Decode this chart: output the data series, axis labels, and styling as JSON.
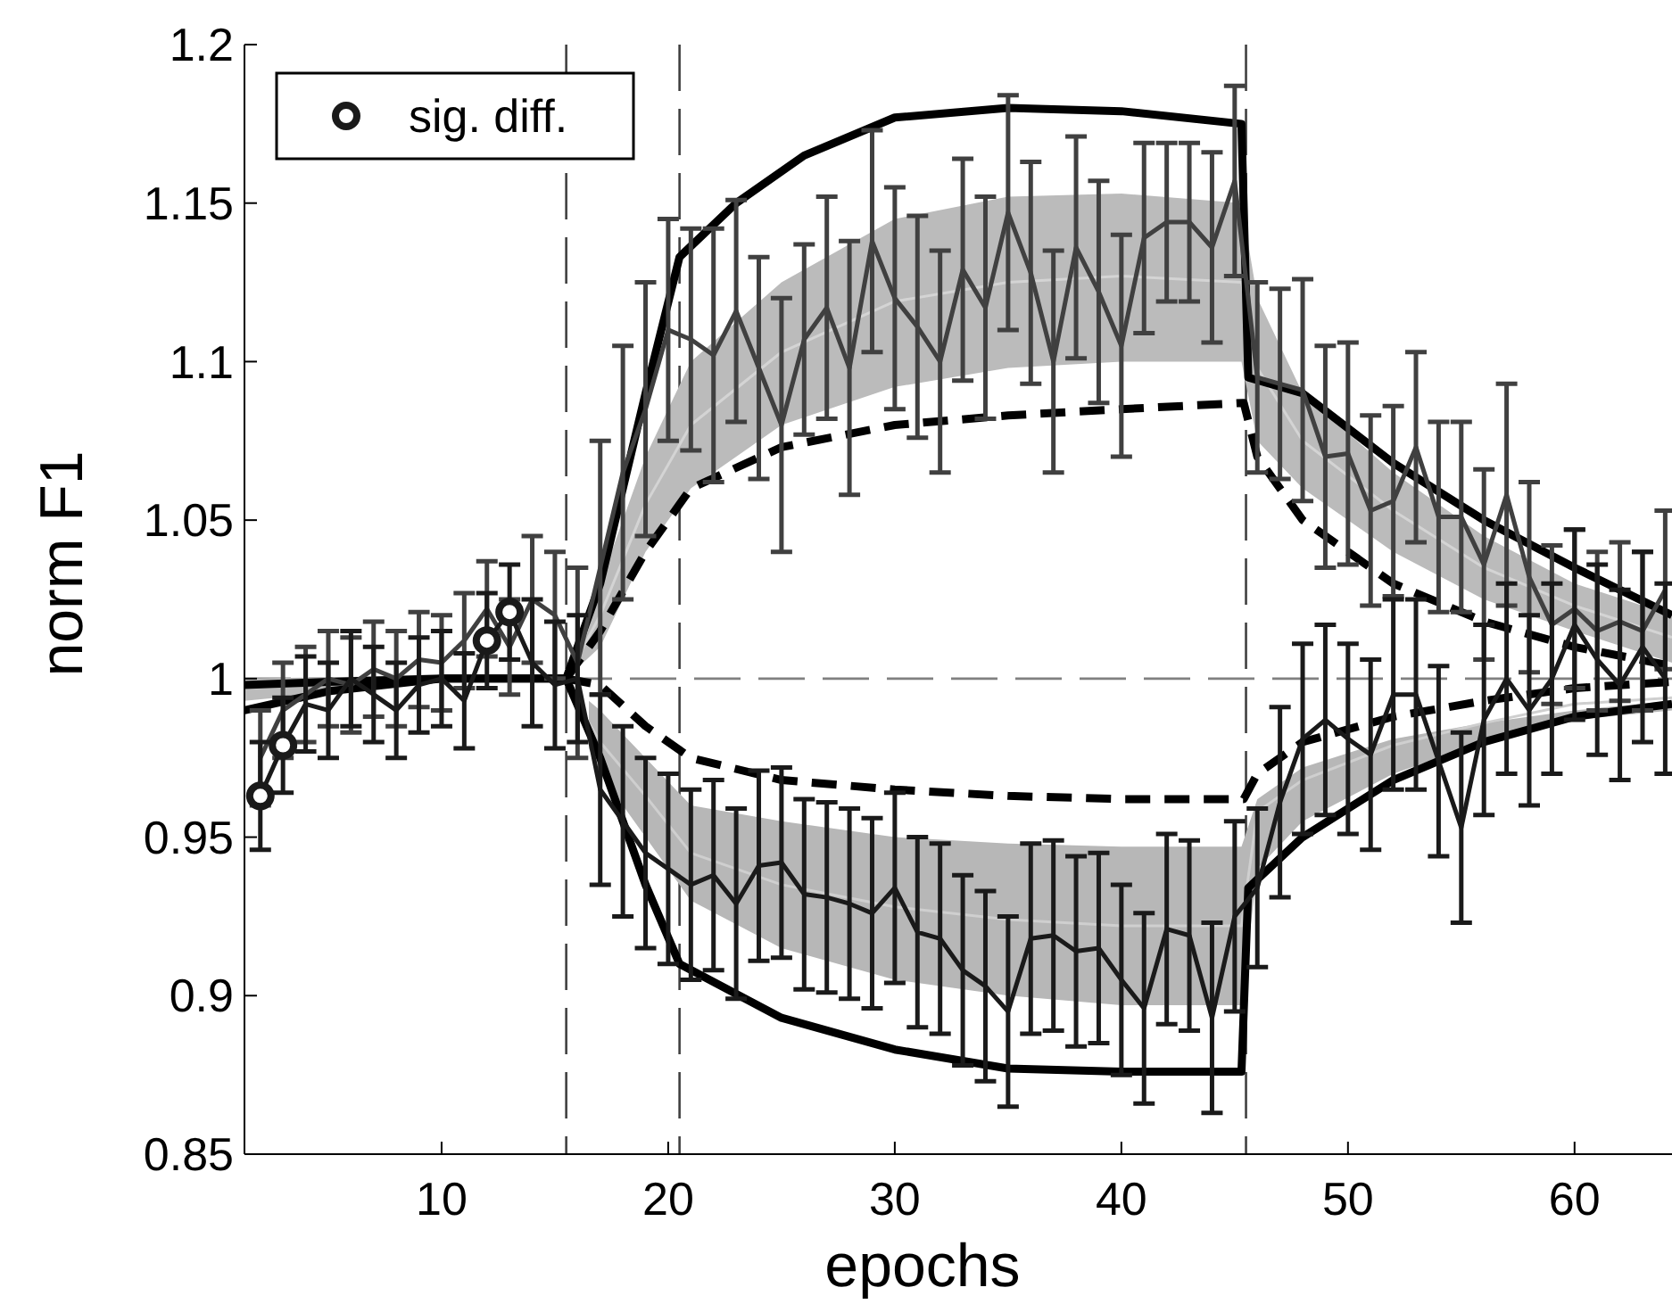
{
  "chart_data": {
    "type": "line",
    "xlabel": "epochs",
    "ylabel": "norm F1",
    "xlim": [
      1.3,
      64.3
    ],
    "xticks": [
      10,
      20,
      30,
      40,
      50,
      60
    ],
    "ylim": [
      0.85,
      1.2
    ],
    "yticks": [
      0.85,
      0.9,
      0.95,
      1,
      1.05,
      1.1,
      1.15,
      1.2
    ],
    "grid": false,
    "legend": "top left",
    "x": [
      2,
      3,
      4,
      5,
      6,
      7,
      8,
      9,
      10,
      11,
      12,
      13,
      14,
      15,
      16,
      17,
      18,
      19,
      20,
      21,
      22,
      23,
      24,
      25,
      26,
      27,
      28,
      29,
      30,
      31,
      32,
      33,
      34,
      35,
      36,
      37,
      38,
      39,
      40,
      41,
      42,
      43,
      44,
      45,
      46,
      47,
      48,
      49,
      50,
      51,
      52,
      53,
      54,
      55,
      56,
      57,
      58,
      59,
      60,
      61,
      62,
      63,
      64
    ],
    "ref_lines": [
      {
        "axis": "y",
        "value": 1,
        "color": "#808080",
        "line_style": "dashed"
      },
      {
        "axis": "x",
        "value": 15.5,
        "color": "#404040",
        "line_style": "dashed"
      },
      {
        "axis": "x",
        "value": 20.5,
        "color": "#404040",
        "line_style": "dashed"
      },
      {
        "axis": "x",
        "value": 45.5,
        "color": "#404040",
        "line_style": "dashed"
      }
    ],
    "series": [
      {
        "color": "#d4d4d4",
        "x": [
          1.3,
          10,
          15.5,
          17,
          19,
          21,
          25,
          30,
          35,
          40,
          45.3,
          46,
          48,
          52,
          56,
          60,
          64.3
        ],
        "lower": [
          0.993,
          0.999,
          1.0,
          1.01,
          1.04,
          1.06,
          1.08,
          1.092,
          1.098,
          1.1,
          1.1,
          1.075,
          1.06,
          1.04,
          1.025,
          1.015,
          1.005
        ],
        "upper": [
          1.0,
          1.001,
          1.0,
          1.03,
          1.07,
          1.1,
          1.125,
          1.145,
          1.152,
          1.153,
          1.15,
          1.12,
          1.09,
          1.065,
          1.045,
          1.03,
          1.02
        ],
        "values": [
          0.997,
          1.0,
          1.0,
          1.02,
          1.055,
          1.08,
          1.103,
          1.119,
          1.125,
          1.127,
          1.125,
          1.098,
          1.075,
          1.053,
          1.035,
          1.023,
          1.013
        ]
      },
      {
        "type": "line",
        "color": "#cfcfcf",
        "x": [
          16.5,
          17,
          19,
          21,
          25,
          30,
          35,
          40,
          45.3,
          46,
          48,
          52,
          56,
          60,
          64.3
        ],
        "lower": [
          0.978,
          0.97,
          0.95,
          0.93,
          0.915,
          0.905,
          0.9,
          0.897,
          0.897,
          0.94,
          0.955,
          0.97,
          0.98,
          0.987,
          0.99
        ],
        "upper": [
          0.993,
          0.99,
          0.975,
          0.96,
          0.955,
          0.95,
          0.948,
          0.947,
          0.947,
          0.962,
          0.972,
          0.981,
          0.986,
          0.99,
          0.993
        ],
        "values": [
          0.986,
          0.98,
          0.963,
          0.945,
          0.935,
          0.928,
          0.924,
          0.922,
          0.922,
          0.958,
          0.968,
          0.979,
          0.986,
          0.992,
          0.994
        ]
      },
      {
        "type": "line",
        "color": "#000000",
        "line_style": "solid",
        "marker": "none",
        "x": [
          1.3,
          5,
          10,
          15.5,
          17,
          19,
          20.5,
          23,
          26,
          30,
          35,
          40,
          45.3,
          45.6,
          48,
          52,
          56,
          60,
          64.3
        ],
        "values": [
          0.998,
          0.999,
          1.0,
          1.0,
          1.03,
          1.09,
          1.133,
          1.15,
          1.165,
          1.177,
          1.18,
          1.179,
          1.175,
          1.095,
          1.09,
          1.068,
          1.05,
          1.035,
          1.02
        ]
      },
      {
        "type": "line",
        "color": "#000000",
        "line_style": "solid",
        "marker": "none",
        "x": [
          1.3,
          5,
          10,
          15.5,
          17,
          19,
          20.5,
          25,
          30,
          35,
          40,
          45.3,
          45.6,
          48,
          52,
          56,
          60,
          64.3
        ],
        "values": [
          0.99,
          0.996,
          1.0,
          1.0,
          0.975,
          0.935,
          0.91,
          0.893,
          0.883,
          0.877,
          0.876,
          0.876,
          0.934,
          0.95,
          0.968,
          0.98,
          0.988,
          0.992
        ]
      },
      {
        "type": "line",
        "color": "#000000",
        "line_style": "dashed",
        "marker": "none",
        "x": [
          15.5,
          17,
          19,
          21,
          25,
          30,
          35,
          40,
          45.4,
          46,
          48,
          52,
          56,
          60,
          64.3
        ],
        "values": [
          1.0,
          1.015,
          1.04,
          1.06,
          1.073,
          1.08,
          1.083,
          1.085,
          1.087,
          1.07,
          1.05,
          1.03,
          1.018,
          1.01,
          1.004
        ]
      },
      {
        "type": "line",
        "color": "#000000",
        "line_style": "dashed",
        "marker": "none",
        "x": [
          15.5,
          17,
          19,
          21,
          25,
          30,
          35,
          40,
          45.4,
          46,
          48,
          52,
          56,
          60,
          64.3
        ],
        "values": [
          1.0,
          0.998,
          0.985,
          0.975,
          0.968,
          0.965,
          0.963,
          0.962,
          0.962,
          0.97,
          0.98,
          0.988,
          0.993,
          0.997,
          0.999
        ]
      },
      {
        "type": "line",
        "color": "#404040",
        "line_style": "solid",
        "marker": "none",
        "values": [
          0.975,
          0.99,
          0.995,
          1.0,
          0.998,
          1.003,
          1.0,
          1.006,
          1.005,
          1.012,
          1.022,
          1.01,
          1.025,
          1.02,
          1.005,
          1.035,
          1.065,
          1.085,
          1.11,
          1.107,
          1.102,
          1.116,
          1.098,
          1.08,
          1.107,
          1.117,
          1.098,
          1.138,
          1.12,
          1.111,
          1.1,
          1.129,
          1.117,
          1.147,
          1.128,
          1.1,
          1.136,
          1.122,
          1.105,
          1.139,
          1.144,
          1.144,
          1.136,
          1.157,
          1.095,
          1.093,
          1.091,
          1.07,
          1.071,
          1.053,
          1.056,
          1.073,
          1.051,
          1.051,
          1.036,
          1.058,
          1.032,
          1.017,
          1.022,
          1.015,
          1.018,
          1.015,
          1.028
        ],
        "errors": [
          0.015,
          0.015,
          0.015,
          0.015,
          0.015,
          0.015,
          0.015,
          0.015,
          0.015,
          0.015,
          0.015,
          0.015,
          0.02,
          0.02,
          0.03,
          0.04,
          0.04,
          0.04,
          0.035,
          0.035,
          0.04,
          0.035,
          0.035,
          0.04,
          0.03,
          0.035,
          0.04,
          0.035,
          0.035,
          0.035,
          0.035,
          0.035,
          0.035,
          0.037,
          0.035,
          0.035,
          0.035,
          0.035,
          0.035,
          0.03,
          0.025,
          0.025,
          0.03,
          0.03,
          0.03,
          0.03,
          0.035,
          0.035,
          0.035,
          0.03,
          0.03,
          0.03,
          0.03,
          0.03,
          0.03,
          0.035,
          0.03,
          0.025,
          0.025,
          0.025,
          0.025,
          0.025,
          0.025
        ]
      },
      {
        "type": "line",
        "color": "#1a1a1a",
        "line_style": "solid",
        "marker": "none",
        "values": [
          0.963,
          0.979,
          0.992,
          0.99,
          1.0,
          0.995,
          0.99,
          0.998,
          1.0,
          0.993,
          1.012,
          1.021,
          1.005,
          0.998,
          1.0,
          0.965,
          0.955,
          0.945,
          0.94,
          0.935,
          0.938,
          0.929,
          0.941,
          0.942,
          0.932,
          0.931,
          0.929,
          0.926,
          0.934,
          0.92,
          0.918,
          0.908,
          0.903,
          0.895,
          0.918,
          0.919,
          0.914,
          0.915,
          0.905,
          0.896,
          0.921,
          0.919,
          0.893,
          0.925,
          0.934,
          0.961,
          0.981,
          0.987,
          0.981,
          0.976,
          0.995,
          0.995,
          0.974,
          0.953,
          0.987,
          1.0,
          0.99,
          1.0,
          1.017,
          1.006,
          0.998,
          1.01,
          1.0
        ],
        "errors": [
          0.017,
          0.015,
          0.015,
          0.015,
          0.015,
          0.015,
          0.015,
          0.015,
          0.015,
          0.015,
          0.015,
          0.015,
          0.02,
          0.02,
          0.02,
          0.03,
          0.03,
          0.03,
          0.03,
          0.03,
          0.03,
          0.03,
          0.03,
          0.03,
          0.03,
          0.03,
          0.03,
          0.03,
          0.03,
          0.03,
          0.03,
          0.03,
          0.03,
          0.03,
          0.03,
          0.03,
          0.03,
          0.03,
          0.03,
          0.03,
          0.03,
          0.03,
          0.03,
          0.03,
          0.025,
          0.03,
          0.03,
          0.03,
          0.03,
          0.03,
          0.03,
          0.03,
          0.03,
          0.03,
          0.03,
          0.03,
          0.03,
          0.03,
          0.03,
          0.03,
          0.03,
          0.03,
          0.03
        ]
      },
      {
        "type": "scatter",
        "name": "sig. diff.",
        "color": "#1a1a1a",
        "marker": "circle",
        "x": [
          2,
          3,
          12,
          13
        ],
        "values": [
          0.963,
          0.979,
          1.012,
          1.021
        ]
      }
    ]
  }
}
